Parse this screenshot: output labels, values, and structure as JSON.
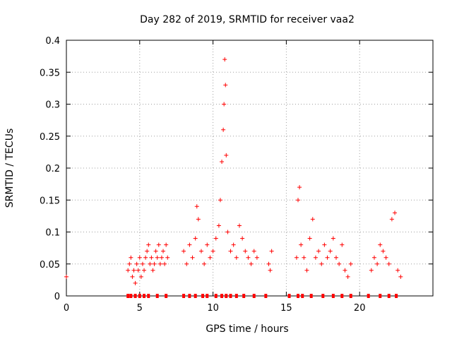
{
  "chart_data": {
    "type": "scatter",
    "title": "Day 282 of 2019, SRMTID for receiver vaa2",
    "xlabel": "GPS time / hours",
    "ylabel": "SRMTID / TECUs",
    "xlim": [
      0,
      25
    ],
    "ylim": [
      0,
      0.4
    ],
    "grid": true,
    "marker": "+",
    "marker_color": "#ff0000",
    "xticks": [
      0,
      5,
      10,
      15,
      20
    ],
    "xtick_labels": [
      "0",
      "5",
      "10",
      "15",
      "20"
    ],
    "yticks": [
      0,
      0.05,
      0.1,
      0.15,
      0.2,
      0.25,
      0.3,
      0.35,
      0.4
    ],
    "ytick_labels": [
      "0",
      "0.05",
      "0.1",
      "0.15",
      "0.2",
      "0.25",
      "0.3",
      "0.35",
      "0.4"
    ],
    "series": [
      {
        "name": "SRMTID",
        "x": [
          0.0,
          4.2,
          4.3,
          4.4,
          4.5,
          4.6,
          4.7,
          4.8,
          4.9,
          5.0,
          5.1,
          5.2,
          5.3,
          5.4,
          5.5,
          5.6,
          5.7,
          5.8,
          5.9,
          6.0,
          6.1,
          6.2,
          6.3,
          6.4,
          6.5,
          6.6,
          6.7,
          6.8,
          6.9,
          8.0,
          8.2,
          8.4,
          8.6,
          8.8,
          8.9,
          9.0,
          9.2,
          9.4,
          9.6,
          9.8,
          10.0,
          10.2,
          10.4,
          10.5,
          10.6,
          10.7,
          10.75,
          10.8,
          10.85,
          10.9,
          11.0,
          11.2,
          11.4,
          11.6,
          11.8,
          12.0,
          12.2,
          12.4,
          12.6,
          12.8,
          13.0,
          13.8,
          13.9,
          14.0,
          15.7,
          15.8,
          15.9,
          16.0,
          16.2,
          16.4,
          16.6,
          16.8,
          17.0,
          17.2,
          17.4,
          17.6,
          17.8,
          18.0,
          18.2,
          18.4,
          18.6,
          18.8,
          19.0,
          19.2,
          19.4,
          20.8,
          21.0,
          21.2,
          21.4,
          21.6,
          21.8,
          22.0,
          22.2,
          22.4,
          22.6,
          22.8
        ],
        "y": [
          0.03,
          0.04,
          0.05,
          0.06,
          0.03,
          0.04,
          0.02,
          0.05,
          0.04,
          0.06,
          0.03,
          0.05,
          0.04,
          0.06,
          0.07,
          0.08,
          0.05,
          0.06,
          0.04,
          0.05,
          0.07,
          0.06,
          0.08,
          0.05,
          0.06,
          0.07,
          0.05,
          0.08,
          0.06,
          0.07,
          0.05,
          0.08,
          0.06,
          0.09,
          0.14,
          0.12,
          0.07,
          0.05,
          0.08,
          0.06,
          0.07,
          0.09,
          0.11,
          0.15,
          0.21,
          0.26,
          0.3,
          0.37,
          0.33,
          0.22,
          0.1,
          0.07,
          0.08,
          0.06,
          0.11,
          0.09,
          0.07,
          0.06,
          0.05,
          0.07,
          0.06,
          0.05,
          0.04,
          0.07,
          0.06,
          0.15,
          0.17,
          0.08,
          0.06,
          0.04,
          0.09,
          0.12,
          0.06,
          0.07,
          0.05,
          0.08,
          0.06,
          0.07,
          0.09,
          0.06,
          0.05,
          0.08,
          0.04,
          0.03,
          0.05,
          0.04,
          0.06,
          0.05,
          0.08,
          0.07,
          0.06,
          0.05,
          0.12,
          0.13,
          0.04,
          0.03
        ]
      }
    ],
    "zero_x": [
      4.2,
      4.4,
      4.7,
      5.0,
      5.3,
      5.6,
      6.2,
      6.8,
      8.0,
      8.4,
      8.8,
      9.3,
      9.6,
      10.2,
      10.6,
      10.9,
      11.2,
      11.6,
      12.1,
      12.8,
      13.6,
      15.2,
      15.8,
      16.1,
      16.7,
      17.5,
      18.2,
      18.8,
      19.4,
      20.6,
      21.4,
      22.0,
      22.5
    ]
  }
}
